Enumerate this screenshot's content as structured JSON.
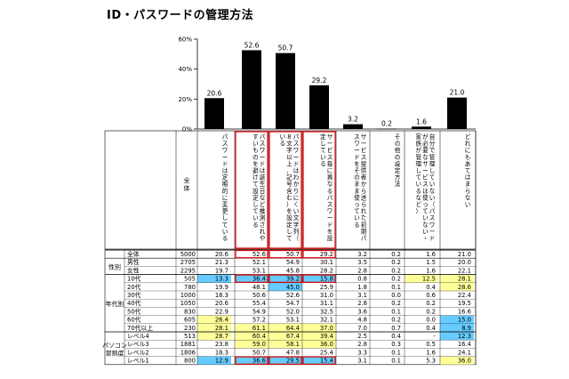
{
  "title": "ID・パスワードの管理方法",
  "chart_data": {
    "type": "bar",
    "yticks": [
      "60%",
      "40%",
      "20%",
      "0%"
    ],
    "ylim": [
      0,
      60
    ],
    "categories": [
      "パスワードは定期的に変更している",
      "パスワードは誕生日など推測されやすいものを避けて設定している",
      "パスワードはわかりにくい文字列（8文字以上、記号含む）を設定している",
      "サービス毎に異なるパスワードを設定している",
      "サービス提供者から送られた初期パスワードをそのまま使っている",
      "その他の設定方法",
      "自分で管理していない（パスワードが必要なサービスは使っていない・家族が管理しているなど）",
      "どれにもあてはまらない"
    ],
    "values": [
      20.6,
      52.6,
      50.7,
      29.2,
      3.2,
      0.2,
      1.6,
      21.0
    ],
    "value_labels": [
      "20.6",
      "52.6",
      "50.7",
      "29.2",
      "3.2",
      "0.2",
      "1.6",
      "21.0"
    ],
    "bar_color": "#000000"
  },
  "table": {
    "total_header": "全体",
    "groups": [
      {
        "label": "",
        "rows": [
          0
        ]
      },
      {
        "label": "性別",
        "rows": [
          1,
          2
        ]
      },
      {
        "label": "年代別",
        "rows": [
          3,
          4,
          5,
          6,
          7,
          8,
          9
        ]
      },
      {
        "label": "パソコン習熟度",
        "rows": [
          10,
          11,
          12,
          13
        ]
      }
    ],
    "rows": [
      {
        "label": "全体",
        "n": "5000",
        "cells": [
          "20.6",
          "52.6",
          "50.7",
          "29.2",
          "3.2",
          "0.2",
          "1.6",
          "21.0"
        ]
      },
      {
        "label": "男性",
        "n": "2705",
        "cells": [
          "21.3",
          "52.1",
          "54.9",
          "30.1",
          "3.5",
          "0.2",
          "1.5",
          "20.0"
        ]
      },
      {
        "label": "女性",
        "n": "2295",
        "cells": [
          "19.7",
          "53.1",
          "45.8",
          "28.2",
          "2.8",
          "0.2",
          "1.6",
          "22.1"
        ]
      },
      {
        "label": "10代",
        "n": "505",
        "cells": [
          "13.3",
          "36.4",
          "39.2",
          "15.8",
          "0.8",
          "0.2",
          "12.5",
          "28.1"
        ]
      },
      {
        "label": "20代",
        "n": "780",
        "cells": [
          "19.9",
          "48.1",
          "45.0",
          "25.9",
          "1.8",
          "0.1",
          "0.4",
          "28.6"
        ]
      },
      {
        "label": "30代",
        "n": "1000",
        "cells": [
          "18.3",
          "50.6",
          "52.6",
          "31.0",
          "3.1",
          "0.0",
          "0.6",
          "22.4"
        ]
      },
      {
        "label": "40代",
        "n": "1050",
        "cells": [
          "20.6",
          "55.4",
          "54.7",
          "31.1",
          "2.8",
          "0.2",
          "0.2",
          "19.5"
        ]
      },
      {
        "label": "50代",
        "n": "830",
        "cells": [
          "22.9",
          "54.9",
          "52.0",
          "32.5",
          "3.6",
          "0.1",
          "0.2",
          "16.6"
        ]
      },
      {
        "label": "60代",
        "n": "605",
        "cells": [
          "26.4",
          "57.2",
          "53.1",
          "32.1",
          "4.8",
          "0.2",
          "0.0",
          "15.0"
        ]
      },
      {
        "label": "70代以上",
        "n": "230",
        "cells": [
          "28.1",
          "61.1",
          "64.4",
          "37.0",
          "7.0",
          "0.7",
          "0.4",
          "8.9"
        ]
      },
      {
        "label": "レベル4",
        "n": "513",
        "cells": [
          "28.7",
          "60.4",
          "67.4",
          "39.4",
          "2.5",
          "0.4",
          "-",
          "12.3"
        ]
      },
      {
        "label": "レベル3",
        "n": "1881",
        "cells": [
          "23.8",
          "59.0",
          "58.1",
          "36.0",
          "2.8",
          "0.3",
          "0.5",
          "16.4"
        ]
      },
      {
        "label": "レベル2",
        "n": "1806",
        "cells": [
          "18.3",
          "50.7",
          "47.8",
          "25.4",
          "3.3",
          "0.1",
          "1.6",
          "24.1"
        ]
      },
      {
        "label": "レベル1",
        "n": "800",
        "cells": [
          "12.9",
          "36.6",
          "29.5",
          "15.4",
          "3.1",
          "0.1",
          "5.3",
          "36.0"
        ]
      }
    ]
  },
  "colors": {
    "highlight_high": "#ffff99",
    "highlight_low": "#66ccff",
    "highlight_mid": "#fff3b0",
    "frame_red": "#e00000",
    "grid": "#888888"
  }
}
